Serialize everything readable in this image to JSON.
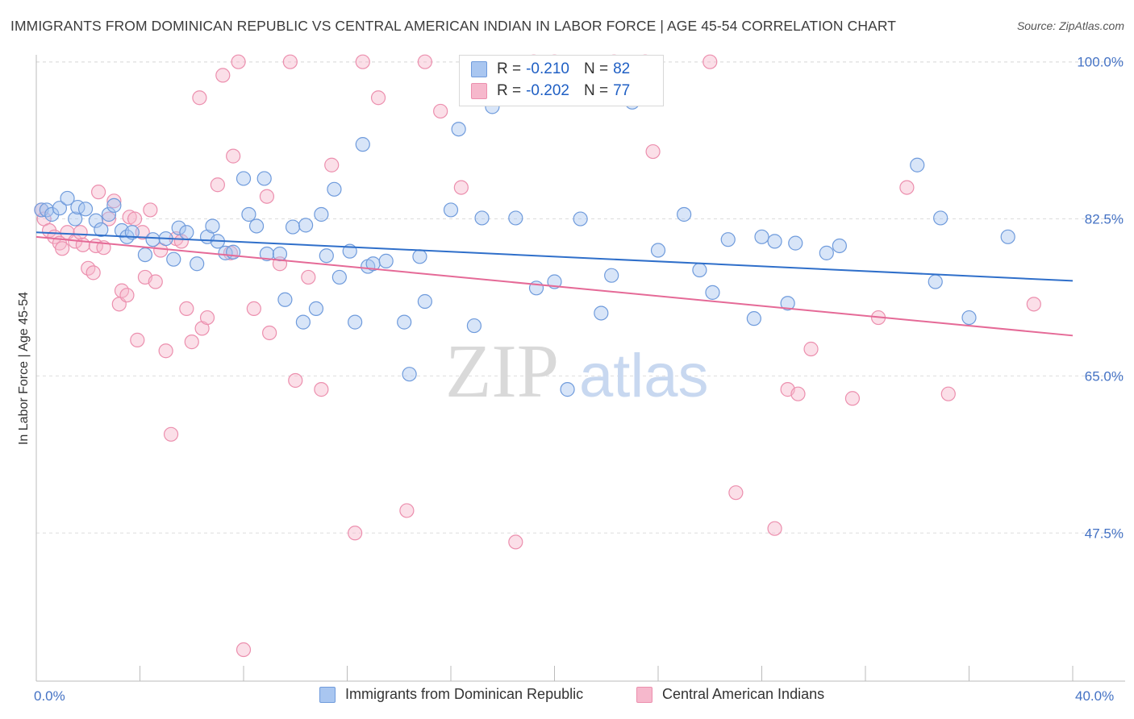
{
  "title": "IMMIGRANTS FROM DOMINICAN REPUBLIC VS CENTRAL AMERICAN INDIAN IN LABOR FORCE | AGE 45-54 CORRELATION CHART",
  "source": "Source: ZipAtlas.com",
  "legend": {
    "blue": {
      "r_label": "R =",
      "r_value": "-0.210",
      "n_label": "N =",
      "n_value": "82"
    },
    "pink": {
      "r_label": "R =",
      "r_value": "-0.202",
      "n_label": "N =",
      "n_value": "77"
    }
  },
  "bottom_legend": {
    "blue": "Immigrants from Dominican Republic",
    "pink": "Central American Indians"
  },
  "watermark": {
    "zip": "ZIP",
    "atlas": "atlas"
  },
  "colors": {
    "blue_fill": "#a9c6f0",
    "blue_stroke": "#6f9bdc",
    "blue_line": "#2f6fca",
    "pink_fill": "#f6b8cc",
    "pink_stroke": "#ec8fae",
    "pink_line": "#e56a97",
    "tick_text": "#4472c4",
    "grid": "#dddddd"
  },
  "chart_data": {
    "type": "scatter",
    "title": "IMMIGRANTS FROM DOMINICAN REPUBLIC VS CENTRAL AMERICAN INDIAN IN LABOR FORCE | AGE 45-54 CORRELATION CHART",
    "xlabel": "",
    "ylabel": "In Labor Force | Age 45-54",
    "xlim": [
      0,
      40
    ],
    "ylim": [
      31,
      101.5
    ],
    "x_tick_labels": [
      "0.0%",
      "40.0%"
    ],
    "y_ticks": [
      100,
      82.5,
      65,
      47.5
    ],
    "y_tick_labels": [
      "100.0%",
      "82.5%",
      "65.0%",
      "47.5%"
    ],
    "series": [
      {
        "name": "Immigrants from Dominican Republic",
        "color": "blue",
        "r": -0.21,
        "n": 82,
        "trend": {
          "x": [
            0,
            40
          ],
          "y": [
            81.0,
            75.6
          ]
        },
        "points": [
          [
            0.2,
            83.5
          ],
          [
            0.4,
            83.5
          ],
          [
            0.6,
            83.0
          ],
          [
            0.9,
            83.7
          ],
          [
            1.2,
            84.8
          ],
          [
            1.5,
            82.5
          ],
          [
            1.6,
            83.8
          ],
          [
            1.9,
            83.6
          ],
          [
            2.3,
            82.3
          ],
          [
            2.5,
            81.3
          ],
          [
            2.8,
            83.0
          ],
          [
            3.0,
            84.0
          ],
          [
            3.3,
            81.2
          ],
          [
            3.5,
            80.5
          ],
          [
            3.7,
            81.0
          ],
          [
            4.2,
            78.5
          ],
          [
            4.5,
            80.2
          ],
          [
            5.0,
            80.3
          ],
          [
            5.3,
            78.0
          ],
          [
            5.5,
            81.5
          ],
          [
            5.8,
            81.0
          ],
          [
            6.2,
            77.5
          ],
          [
            6.6,
            80.5
          ],
          [
            6.8,
            81.7
          ],
          [
            7.0,
            80.0
          ],
          [
            7.3,
            78.7
          ],
          [
            7.6,
            78.8
          ],
          [
            8.0,
            87.0
          ],
          [
            8.2,
            83.0
          ],
          [
            8.5,
            81.7
          ],
          [
            8.8,
            87.0
          ],
          [
            8.9,
            78.6
          ],
          [
            9.4,
            78.6
          ],
          [
            9.6,
            73.5
          ],
          [
            9.9,
            81.6
          ],
          [
            10.3,
            71.0
          ],
          [
            10.4,
            81.8
          ],
          [
            10.8,
            72.5
          ],
          [
            11.0,
            83.0
          ],
          [
            11.2,
            78.4
          ],
          [
            11.5,
            85.8
          ],
          [
            11.7,
            76.0
          ],
          [
            12.1,
            78.9
          ],
          [
            12.3,
            71.0
          ],
          [
            12.6,
            90.8
          ],
          [
            12.8,
            77.2
          ],
          [
            13.0,
            77.5
          ],
          [
            13.5,
            77.8
          ],
          [
            14.2,
            71.0
          ],
          [
            14.4,
            65.2
          ],
          [
            14.8,
            78.3
          ],
          [
            15.0,
            73.3
          ],
          [
            16.0,
            83.5
          ],
          [
            16.3,
            92.5
          ],
          [
            16.9,
            70.6
          ],
          [
            17.2,
            82.6
          ],
          [
            17.6,
            95.0
          ],
          [
            18.5,
            82.6
          ],
          [
            19.3,
            74.8
          ],
          [
            20.0,
            75.5
          ],
          [
            20.5,
            63.5
          ],
          [
            21.0,
            82.5
          ],
          [
            21.8,
            72.0
          ],
          [
            22.2,
            76.2
          ],
          [
            23.0,
            95.5
          ],
          [
            24.0,
            79.0
          ],
          [
            25.0,
            83.0
          ],
          [
            25.6,
            76.8
          ],
          [
            26.1,
            74.3
          ],
          [
            26.7,
            80.2
          ],
          [
            27.7,
            71.4
          ],
          [
            28.0,
            80.5
          ],
          [
            28.5,
            80.0
          ],
          [
            29.0,
            73.1
          ],
          [
            29.3,
            79.8
          ],
          [
            30.5,
            78.7
          ],
          [
            31.0,
            79.5
          ],
          [
            34.0,
            88.5
          ],
          [
            34.7,
            75.5
          ],
          [
            34.9,
            82.6
          ],
          [
            36.0,
            71.5
          ],
          [
            37.5,
            80.5
          ]
        ]
      },
      {
        "name": "Central American Indians",
        "color": "pink",
        "r": -0.202,
        "n": 77,
        "trend": {
          "x": [
            0,
            40
          ],
          "y": [
            80.5,
            69.5
          ]
        },
        "points": [
          [
            0.2,
            83.5
          ],
          [
            0.3,
            82.5
          ],
          [
            0.5,
            81.2
          ],
          [
            0.7,
            80.5
          ],
          [
            0.9,
            79.8
          ],
          [
            1.0,
            79.2
          ],
          [
            1.2,
            81.0
          ],
          [
            1.5,
            80.0
          ],
          [
            1.7,
            81.0
          ],
          [
            1.8,
            79.6
          ],
          [
            2.0,
            77.0
          ],
          [
            2.2,
            76.5
          ],
          [
            2.3,
            79.5
          ],
          [
            2.4,
            85.5
          ],
          [
            2.6,
            79.3
          ],
          [
            2.8,
            82.5
          ],
          [
            3.0,
            84.5
          ],
          [
            3.2,
            73.0
          ],
          [
            3.3,
            74.5
          ],
          [
            3.5,
            74.0
          ],
          [
            3.6,
            82.7
          ],
          [
            3.8,
            82.5
          ],
          [
            3.9,
            69.0
          ],
          [
            4.1,
            81.0
          ],
          [
            4.2,
            76.0
          ],
          [
            4.4,
            83.5
          ],
          [
            4.6,
            75.5
          ],
          [
            4.8,
            79.0
          ],
          [
            5.0,
            67.8
          ],
          [
            5.2,
            58.5
          ],
          [
            5.4,
            80.3
          ],
          [
            5.6,
            80.0
          ],
          [
            5.8,
            72.5
          ],
          [
            6.0,
            68.8
          ],
          [
            6.3,
            96.0
          ],
          [
            6.4,
            70.3
          ],
          [
            6.6,
            71.5
          ],
          [
            7.0,
            86.3
          ],
          [
            7.2,
            98.5
          ],
          [
            7.5,
            78.7
          ],
          [
            7.6,
            89.5
          ],
          [
            7.8,
            100.0
          ],
          [
            8.0,
            34.5
          ],
          [
            8.4,
            72.5
          ],
          [
            8.9,
            85.0
          ],
          [
            9.0,
            69.8
          ],
          [
            9.4,
            77.5
          ],
          [
            9.8,
            100.0
          ],
          [
            10.0,
            64.5
          ],
          [
            10.5,
            76.0
          ],
          [
            11.0,
            63.5
          ],
          [
            11.4,
            88.5
          ],
          [
            12.3,
            47.5
          ],
          [
            12.6,
            100.0
          ],
          [
            13.2,
            96.0
          ],
          [
            14.3,
            50.0
          ],
          [
            15.0,
            100.0
          ],
          [
            15.6,
            94.5
          ],
          [
            16.4,
            86.0
          ],
          [
            17.4,
            98.5
          ],
          [
            18.5,
            46.5
          ],
          [
            19.2,
            100.0
          ],
          [
            20.0,
            100.0
          ],
          [
            22.3,
            100.0
          ],
          [
            23.5,
            100.0
          ],
          [
            23.8,
            90.0
          ],
          [
            26.0,
            100.0
          ],
          [
            27.0,
            52.0
          ],
          [
            28.5,
            48.0
          ],
          [
            29.0,
            63.5
          ],
          [
            29.4,
            63.0
          ],
          [
            29.9,
            68.0
          ],
          [
            31.5,
            62.5
          ],
          [
            32.5,
            71.5
          ],
          [
            33.6,
            86.0
          ],
          [
            35.2,
            63.0
          ],
          [
            38.5,
            73.0
          ]
        ]
      }
    ]
  }
}
